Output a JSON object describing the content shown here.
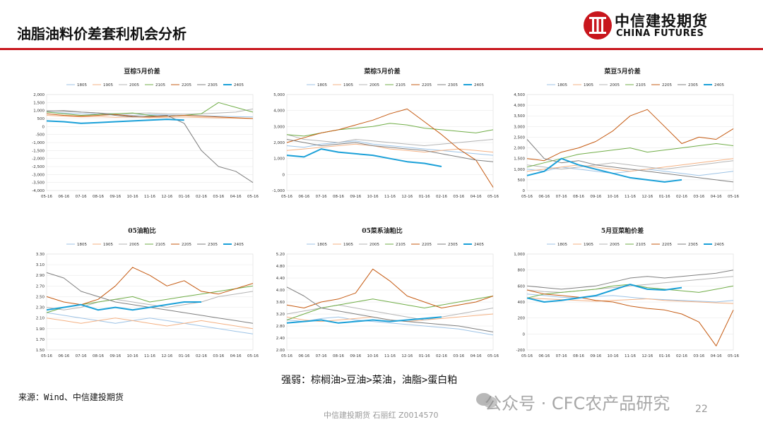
{
  "slide": {
    "title": "油脂油料价差套利机会分析",
    "logo_cn": "中信建投期货",
    "logo_en": "CHINA FUTURES",
    "conclusion": "强弱：棕榈油>豆油>菜油，油脂>蛋白粕",
    "source": "来源：Wind、中信建投期货",
    "footer": "中信建投期货 石丽红 Z0014570",
    "watermark": "公众号 · CFC农产品研究",
    "page_number": "22",
    "accent_color": "#c8161d"
  },
  "legend_colors": {
    "1805": "#9dc3e6",
    "1905": "#f4b183",
    "2005": "#b4b4b4",
    "2105": "#70ad47",
    "2205": "#c55a11",
    "2305": "#7f7f7f",
    "2405": "#1aa0d8"
  },
  "chart_data": [
    {
      "type": "line",
      "title": "豆棕5月价差",
      "x_ticks": [
        "05-16",
        "06-16",
        "07-16",
        "08-16",
        "09-16",
        "10-16",
        "11-16",
        "12-16",
        "01-16",
        "02-16",
        "03-16",
        "04-16",
        "05-16"
      ],
      "y_ticks": [
        "2,000",
        "1,500",
        "1,000",
        "500",
        "0",
        "-500",
        "-1,000",
        "-1,500",
        "-2,000",
        "-2,500",
        "-3,000",
        "-3,500",
        "-4,000"
      ],
      "ylim": [
        -4000,
        2000
      ],
      "series": [
        {
          "name": "1805",
          "values": [
            900,
            850,
            800,
            780,
            760,
            700,
            750,
            720,
            700,
            680,
            650,
            620,
            600
          ]
        },
        {
          "name": "1905",
          "values": [
            700,
            650,
            600,
            620,
            580,
            600,
            550,
            580,
            600,
            560,
            540,
            520,
            500
          ]
        },
        {
          "name": "2005",
          "values": [
            1000,
            950,
            900,
            850,
            800,
            820,
            850,
            800,
            780,
            800,
            850,
            900,
            1100
          ]
        },
        {
          "name": "2105",
          "values": [
            900,
            800,
            700,
            750,
            800,
            850,
            700,
            650,
            700,
            800,
            1500,
            1200,
            900
          ]
        },
        {
          "name": "2205",
          "values": [
            800,
            700,
            650,
            700,
            750,
            650,
            600,
            650,
            700,
            650,
            600,
            550,
            500
          ]
        },
        {
          "name": "2305",
          "values": [
            950,
            1000,
            900,
            850,
            700,
            600,
            650,
            700,
            200,
            -1500,
            -2500,
            -2800,
            -3500
          ]
        },
        {
          "name": "2405",
          "values": [
            350,
            300,
            200,
            250,
            300,
            350,
            400,
            450,
            400,
            null,
            null,
            null,
            null
          ]
        }
      ]
    },
    {
      "type": "line",
      "title": "菜棕5月价差",
      "x_ticks": [
        "05-16",
        "06-16",
        "07-16",
        "08-16",
        "09-16",
        "10-16",
        "11-16",
        "12-16",
        "01-16",
        "02-16",
        "03-16",
        "04-16",
        "05-16"
      ],
      "y_ticks": [
        "5,000",
        "4,000",
        "3,000",
        "2,000",
        "1,000",
        "0",
        "-1,000"
      ],
      "ylim": [
        -1000,
        5000
      ],
      "series": [
        {
          "name": "1805",
          "values": [
            1800,
            1700,
            1900,
            2000,
            2100,
            1900,
            1800,
            1700,
            1600,
            1500,
            1400,
            1300,
            1200
          ]
        },
        {
          "name": "1905",
          "values": [
            1500,
            1600,
            1700,
            1800,
            1900,
            1800,
            1600,
            1500,
            1400,
            1500,
            1600,
            1500,
            1400
          ]
        },
        {
          "name": "2005",
          "values": [
            2500,
            2200,
            2100,
            2000,
            2200,
            2100,
            2000,
            1900,
            1800,
            1900,
            2000,
            2100,
            2200
          ]
        },
        {
          "name": "2105",
          "values": [
            2500,
            2400,
            2600,
            2800,
            2900,
            3000,
            3200,
            3100,
            2900,
            2800,
            2700,
            2600,
            2800
          ]
        },
        {
          "name": "2205",
          "values": [
            2000,
            2300,
            2600,
            2800,
            3100,
            3400,
            3800,
            4100,
            3300,
            2500,
            1600,
            900,
            -800
          ]
        },
        {
          "name": "2305",
          "values": [
            2200,
            2000,
            1800,
            1900,
            2000,
            1800,
            1700,
            1600,
            1500,
            1300,
            1100,
            900,
            800
          ]
        },
        {
          "name": "2405",
          "values": [
            1200,
            1100,
            1600,
            1400,
            1300,
            1200,
            1000,
            800,
            700,
            500,
            null,
            null,
            null
          ]
        }
      ]
    },
    {
      "type": "line",
      "title": "菜豆5月价差",
      "x_ticks": [
        "05-16",
        "06-16",
        "07-16",
        "08-16",
        "09-16",
        "10-16",
        "11-16",
        "12-16",
        "01-16",
        "02-16",
        "03-16",
        "04-16",
        "05-16"
      ],
      "y_ticks": [
        "4,500",
        "4,000",
        "3,500",
        "3,000",
        "2,500",
        "2,000",
        "1,500",
        "1,000",
        "500",
        "0"
      ],
      "ylim": [
        0,
        4500
      ],
      "series": [
        {
          "name": "1805",
          "values": [
            1000,
            900,
            1100,
            1000,
            900,
            800,
            900,
            1000,
            900,
            800,
            700,
            800,
            900
          ]
        },
        {
          "name": "1905",
          "values": [
            900,
            1000,
            1100,
            1200,
            1100,
            1000,
            900,
            1000,
            1100,
            1200,
            1300,
            1400,
            1500
          ]
        },
        {
          "name": "2005",
          "values": [
            1200,
            1100,
            1000,
            1100,
            1200,
            1300,
            1200,
            1100,
            1000,
            1100,
            1200,
            1300,
            1400
          ]
        },
        {
          "name": "2105",
          "values": [
            1100,
            1300,
            1500,
            1700,
            1800,
            1900,
            2000,
            1800,
            1900,
            2000,
            2100,
            2200,
            2100
          ]
        },
        {
          "name": "2205",
          "values": [
            1500,
            1400,
            1800,
            2000,
            2300,
            2800,
            3500,
            3800,
            3000,
            2200,
            2500,
            2400,
            2900
          ]
        },
        {
          "name": "2305",
          "values": [
            2400,
            1500,
            1300,
            1400,
            1200,
            1100,
            1000,
            900,
            800,
            700,
            600,
            500,
            400
          ]
        },
        {
          "name": "2405",
          "values": [
            700,
            900,
            1500,
            1200,
            1000,
            800,
            600,
            500,
            400,
            500,
            null,
            null,
            null
          ]
        }
      ]
    },
    {
      "type": "line",
      "title": "05油粕比",
      "x_ticks": [
        "05-16",
        "06-16",
        "07-16",
        "08-16",
        "09-16",
        "10-16",
        "11-16",
        "12-16",
        "01-16",
        "02-16",
        "03-16",
        "04-16",
        "05-16"
      ],
      "y_ticks": [
        "3.30",
        "3.10",
        "2.90",
        "2.70",
        "2.50",
        "2.30",
        "2.10",
        "1.90",
        "1.70",
        "1.50"
      ],
      "ylim": [
        1.5,
        3.3
      ],
      "series": [
        {
          "name": "1805",
          "values": [
            2.2,
            2.15,
            2.1,
            2.05,
            2.0,
            2.05,
            2.1,
            2.05,
            2.0,
            1.95,
            1.9,
            1.85,
            1.8
          ]
        },
        {
          "name": "1905",
          "values": [
            2.1,
            2.05,
            2.0,
            2.05,
            2.1,
            2.05,
            2.0,
            1.95,
            2.0,
            2.05,
            2.0,
            1.95,
            1.9
          ]
        },
        {
          "name": "2005",
          "values": [
            2.3,
            2.25,
            2.3,
            2.4,
            2.45,
            2.4,
            2.35,
            2.3,
            2.35,
            2.4,
            2.5,
            2.55,
            2.6
          ]
        },
        {
          "name": "2105",
          "values": [
            2.2,
            2.3,
            2.35,
            2.4,
            2.45,
            2.5,
            2.4,
            2.45,
            2.5,
            2.55,
            2.6,
            2.65,
            2.7
          ]
        },
        {
          "name": "2205",
          "values": [
            2.5,
            2.4,
            2.35,
            2.45,
            2.7,
            3.05,
            2.9,
            2.7,
            2.8,
            2.6,
            2.55,
            2.65,
            2.75
          ]
        },
        {
          "name": "2305",
          "values": [
            2.95,
            2.85,
            2.6,
            2.5,
            2.4,
            2.35,
            2.3,
            2.25,
            2.2,
            2.15,
            2.1,
            2.05,
            2.0
          ]
        },
        {
          "name": "2405",
          "values": [
            2.25,
            2.3,
            2.35,
            2.25,
            2.3,
            2.25,
            2.3,
            2.35,
            2.4,
            2.4,
            null,
            null,
            null
          ]
        }
      ]
    },
    {
      "type": "line",
      "title": "05菜系油粕比",
      "x_ticks": [
        "05-16",
        "06-16",
        "07-16",
        "08-16",
        "09-16",
        "10-16",
        "11-16",
        "12-16",
        "01-16",
        "02-16",
        "03-16",
        "04-16",
        "05-16"
      ],
      "y_ticks": [
        "5.20",
        "4.80",
        "4.40",
        "4.00",
        "3.60",
        "3.20",
        "2.80",
        "2.40",
        "2.00"
      ],
      "ylim": [
        2.0,
        5.2
      ],
      "series": [
        {
          "name": "1805",
          "values": [
            3.0,
            2.95,
            3.05,
            3.1,
            3.0,
            2.95,
            2.9,
            2.85,
            2.8,
            2.75,
            2.7,
            2.6,
            2.5
          ]
        },
        {
          "name": "1905",
          "values": [
            3.1,
            3.0,
            2.95,
            3.0,
            3.05,
            3.1,
            3.0,
            2.95,
            3.0,
            3.05,
            3.1,
            3.15,
            3.2
          ]
        },
        {
          "name": "2005",
          "values": [
            3.2,
            3.3,
            3.4,
            3.5,
            3.4,
            3.3,
            3.2,
            3.1,
            3.0,
            3.1,
            3.2,
            3.3,
            3.4
          ]
        },
        {
          "name": "2105",
          "values": [
            3.0,
            3.2,
            3.4,
            3.5,
            3.6,
            3.7,
            3.6,
            3.5,
            3.4,
            3.5,
            3.6,
            3.7,
            3.8
          ]
        },
        {
          "name": "2205",
          "values": [
            3.5,
            3.4,
            3.6,
            3.7,
            3.9,
            4.7,
            4.3,
            3.8,
            3.6,
            3.4,
            3.5,
            3.6,
            3.8
          ]
        },
        {
          "name": "2305",
          "values": [
            4.1,
            3.8,
            3.4,
            3.3,
            3.2,
            3.1,
            3.0,
            2.95,
            2.9,
            2.85,
            2.8,
            2.7,
            2.6
          ]
        },
        {
          "name": "2405",
          "values": [
            2.9,
            2.95,
            3.0,
            2.9,
            2.95,
            3.0,
            2.95,
            3.0,
            3.05,
            3.1,
            null,
            null,
            null
          ]
        }
      ]
    },
    {
      "type": "line",
      "title": "5月豆菜粕价差",
      "x_ticks": [
        "05-16",
        "06-16",
        "07-16",
        "08-16",
        "09-16",
        "10-16",
        "11-16",
        "12-16",
        "01-16",
        "02-16",
        "03-16",
        "04-16",
        "05-16"
      ],
      "y_ticks": [
        "1,000",
        "800",
        "600",
        "400",
        "200",
        "0",
        "-200"
      ],
      "ylim": [
        -200,
        1000
      ],
      "series": [
        {
          "name": "1805",
          "values": [
            500,
            480,
            460,
            450,
            470,
            480,
            460,
            440,
            430,
            420,
            410,
            400,
            420
          ]
        },
        {
          "name": "1905",
          "values": [
            450,
            440,
            430,
            420,
            410,
            420,
            430,
            440,
            420,
            410,
            400,
            390,
            380
          ]
        },
        {
          "name": "2005",
          "values": [
            550,
            530,
            520,
            540,
            560,
            580,
            600,
            620,
            640,
            660,
            680,
            700,
            720
          ]
        },
        {
          "name": "2105",
          "values": [
            450,
            500,
            520,
            540,
            560,
            600,
            620,
            580,
            560,
            540,
            520,
            560,
            600
          ]
        },
        {
          "name": "2205",
          "values": [
            550,
            500,
            480,
            460,
            420,
            400,
            350,
            320,
            300,
            250,
            150,
            -150,
            300
          ]
        },
        {
          "name": "2305",
          "values": [
            600,
            580,
            560,
            580,
            600,
            650,
            700,
            720,
            700,
            720,
            740,
            760,
            800
          ]
        },
        {
          "name": "2405",
          "values": [
            450,
            400,
            420,
            450,
            480,
            550,
            620,
            560,
            550,
            580,
            null,
            null,
            null
          ]
        }
      ]
    }
  ]
}
